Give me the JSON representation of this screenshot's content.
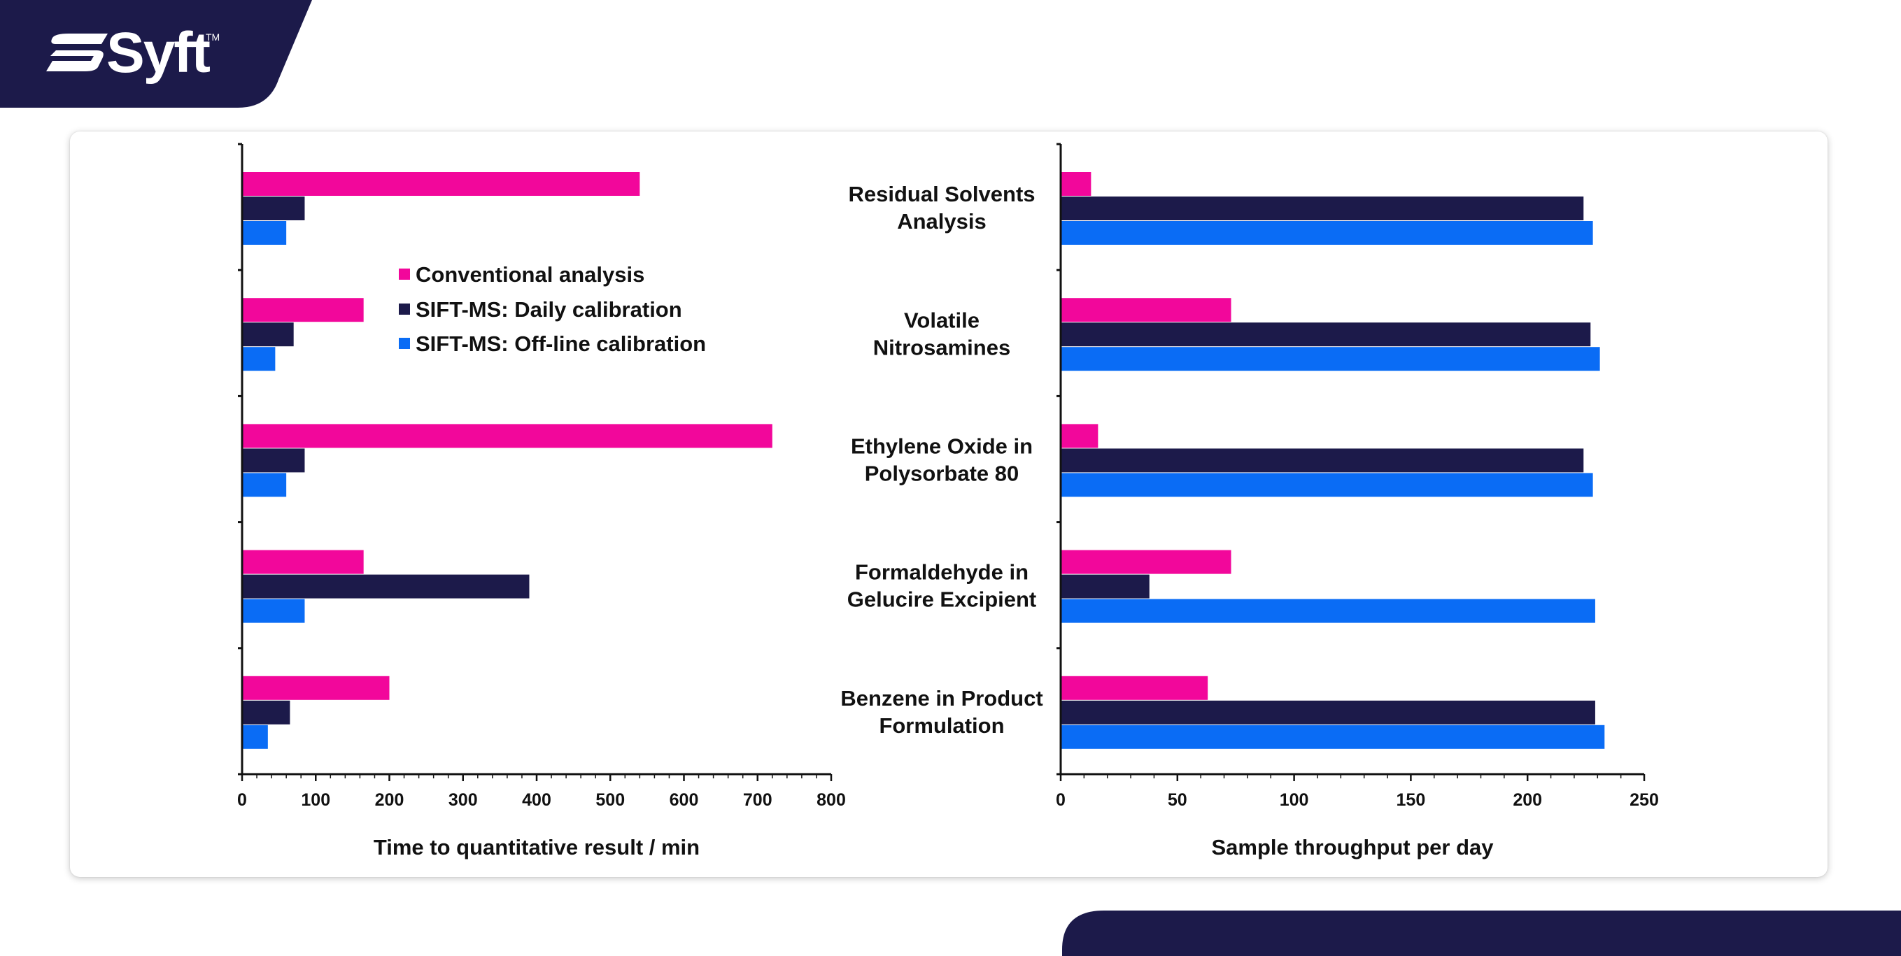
{
  "brand": {
    "logo_text": "Syft",
    "trademark": "TM",
    "colors": {
      "navy": "#1c1a4a",
      "white": "#ffffff"
    }
  },
  "chart_data": [
    {
      "type": "bar",
      "orientation": "horizontal",
      "categories": [
        "Residual Solvents Analysis",
        "Volatile Nitrosamines",
        "Ethylene Oxide in Polysorbate 80",
        "Formaldehyde in Gelucire Excipient",
        "Benzene in Product Formulation"
      ],
      "series": [
        {
          "name": "Conventional analysis",
          "color": "#f2079b",
          "values": [
            540,
            165,
            720,
            165,
            200
          ]
        },
        {
          "name": "SIFT-MS: Daily calibration",
          "color": "#1c1a4a",
          "values": [
            85,
            70,
            85,
            390,
            65
          ]
        },
        {
          "name": "SIFT-MS: Off-line calibration",
          "color": "#0a6cf5",
          "values": [
            60,
            45,
            60,
            85,
            35
          ]
        }
      ],
      "xlabel": "Time to quantitative result / min",
      "xlim": [
        0,
        800
      ],
      "xticks": [
        "0",
        "100",
        "200",
        "300",
        "400",
        "500",
        "600",
        "700",
        "800"
      ],
      "xtick_values": [
        0,
        100,
        200,
        300,
        400,
        500,
        600,
        700,
        800
      ],
      "category_labels_shown": false,
      "legend": {
        "placement": "top-right",
        "entries": [
          "Conventional analysis",
          "SIFT-MS: Daily calibration",
          "SIFT-MS: Off-line calibration"
        ]
      }
    },
    {
      "type": "bar",
      "orientation": "horizontal",
      "categories": [
        "Residual Solvents Analysis",
        "Volatile Nitrosamines",
        "Ethylene Oxide in Polysorbate 80",
        "Formaldehyde in Gelucire Excipient",
        "Benzene in Product Formulation"
      ],
      "category_label_lines": [
        [
          "Residual Solvents",
          "Analysis"
        ],
        [
          "Volatile",
          "Nitrosamines"
        ],
        [
          "Ethylene Oxide in",
          "Polysorbate 80"
        ],
        [
          "Formaldehyde in",
          "Gelucire Excipient"
        ],
        [
          "Benzene in Product",
          "Formulation"
        ]
      ],
      "series": [
        {
          "name": "Conventional analysis",
          "color": "#f2079b",
          "values": [
            13,
            73,
            16,
            73,
            63
          ]
        },
        {
          "name": "SIFT-MS: Daily calibration",
          "color": "#1c1a4a",
          "values": [
            224,
            227,
            224,
            38,
            229
          ]
        },
        {
          "name": "SIFT-MS: Off-line calibration",
          "color": "#0a6cf5",
          "values": [
            228,
            231,
            228,
            229,
            233
          ]
        }
      ],
      "xlabel": "Sample throughput per day",
      "xlim": [
        0,
        250
      ],
      "xticks": [
        "0",
        "50",
        "100",
        "150",
        "200",
        "250"
      ],
      "xtick_values": [
        0,
        50,
        100,
        150,
        200,
        250
      ],
      "category_labels_shown": true
    }
  ]
}
